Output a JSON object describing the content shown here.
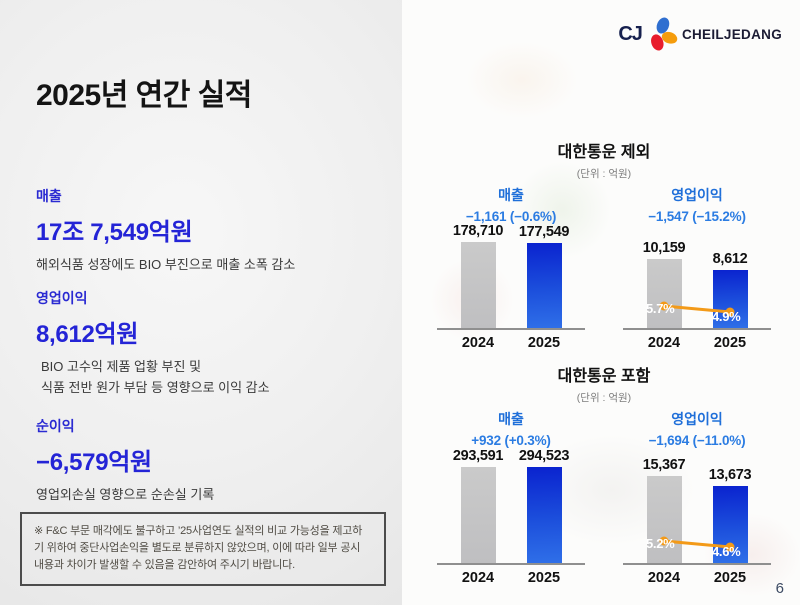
{
  "logo": {
    "cj_text": "CJ",
    "brand_text": "CHEILJEDANG"
  },
  "left": {
    "title": "2025년 연간 실적",
    "metrics": [
      {
        "label": "매출",
        "value": "17조 7,549억원",
        "desc1": "해외식품 성장에도 BIO 부진으로 매출 소폭 감소",
        "desc2": ""
      },
      {
        "label": "영업이익",
        "value": "8,612억원",
        "desc1": "BIO 고수익 제품 업황 부진 및",
        "desc2": "식품 전반 원가 부담 등 영향으로 이익 감소"
      },
      {
        "label": "순이익",
        "value": "−6,579억원",
        "desc1": "영업외손실 영향으로 순손실 기록",
        "desc2": ""
      }
    ],
    "footnote": "※ F&C 부문 매각에도 불구하고 ’25사업연도 실적의 비교 가능성을 제고하기 위하여 중단사업손익을 별도로 분류하지 않았으며, 이에 따라 일부 공시 내용과 차이가 발생할 수 있음을 감안하여 주시기 바랍니다."
  },
  "page_number": "6",
  "colors": {
    "left_accent_blue": "#2424d6",
    "chart_label_blue": "#1f6fd9",
    "chart_change_blue": "#2b7ce2",
    "bar_gray": "#c3c3c5",
    "bar_blue_top": "#0a23cf",
    "bar_blue_bottom": "#2f6fe8",
    "margin_line_orange": "#f39a18"
  },
  "chart_data": [
    {
      "type": "bar",
      "group_title": "대한통운 제외",
      "unit_label": "(단위 : 억원)",
      "categories": [
        "2024",
        "2025"
      ],
      "legend_position": "none",
      "grid": false,
      "subcharts": [
        {
          "name": "매출",
          "change": "−1,161 (−0.6%)",
          "values": [
            178710,
            177549
          ],
          "value_labels": [
            "178,710",
            "177,549"
          ]
        },
        {
          "name": "영업이익",
          "change": "−1,547 (−15.2%)",
          "values": [
            10159,
            8612
          ],
          "value_labels": [
            "10,159",
            "8,612"
          ],
          "margin_pct": [
            "5.7%",
            "4.9%"
          ]
        }
      ]
    },
    {
      "type": "bar",
      "group_title": "대한통운 포함",
      "unit_label": "(단위 : 억원)",
      "categories": [
        "2024",
        "2025"
      ],
      "legend_position": "none",
      "grid": false,
      "subcharts": [
        {
          "name": "매출",
          "change": "+932 (+0.3%)",
          "values": [
            293591,
            294523
          ],
          "value_labels": [
            "293,591",
            "294,523"
          ]
        },
        {
          "name": "영업이익",
          "change": "−1,694 (−11.0%)",
          "values": [
            15367,
            13673
          ],
          "value_labels": [
            "15,367",
            "13,673"
          ],
          "margin_pct": [
            "5.2%",
            "4.6%"
          ]
        }
      ]
    }
  ]
}
